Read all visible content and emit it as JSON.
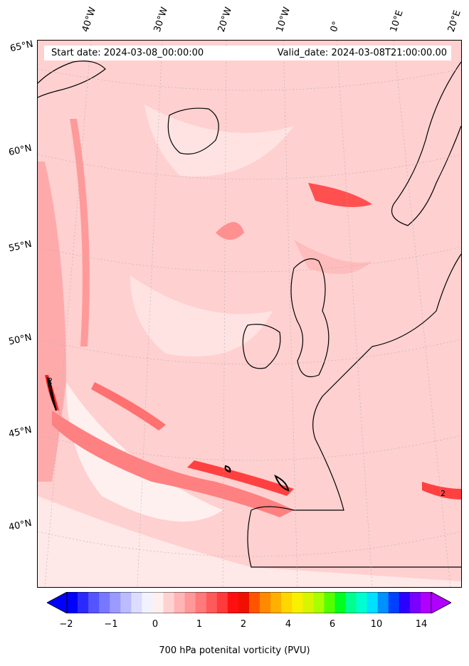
{
  "header": {
    "start_date": "Start date: 2024-03-08_00:00:00",
    "valid_date": "Valid_date: 2024-03-08T21:00:00.00"
  },
  "axes": {
    "longitude_labels": [
      "40°W",
      "30°W",
      "20°W",
      "10°W",
      "0°",
      "10°E",
      "20°E"
    ],
    "latitude_labels": [
      "65°N",
      "60°N",
      "55°N",
      "50°N",
      "45°N",
      "40°N"
    ]
  },
  "colorbar": {
    "label": "700 hPa potenital vorticity (PVU)",
    "ticks": [
      "−2",
      "−1",
      "0",
      "1",
      "2",
      "4",
      "6",
      "10",
      "14"
    ],
    "colors": [
      "#0000ff",
      "#2a2aff",
      "#5555ff",
      "#7777ff",
      "#9a9aff",
      "#bbbbff",
      "#dcdcff",
      "#f2f2ff",
      "#fff0f0",
      "#ffd2d2",
      "#ffb5b5",
      "#ff9898",
      "#ff7a7a",
      "#ff5a5a",
      "#ff3a3a",
      "#ff1010",
      "#f01000",
      "#ff5500",
      "#ff8a00",
      "#ffb000",
      "#ffd600",
      "#f8f000",
      "#d8f500",
      "#a8ff00",
      "#55ff00",
      "#00ff20",
      "#00ff90",
      "#00ffd0",
      "#00e0ff",
      "#0090ff",
      "#0040ff",
      "#2a00ff",
      "#7a00ff",
      "#b000ff"
    ]
  },
  "map": {
    "projection": "conic",
    "field": "700 hPa potential vorticity",
    "land_outline_color": "#000000",
    "contour_label": "2"
  }
}
